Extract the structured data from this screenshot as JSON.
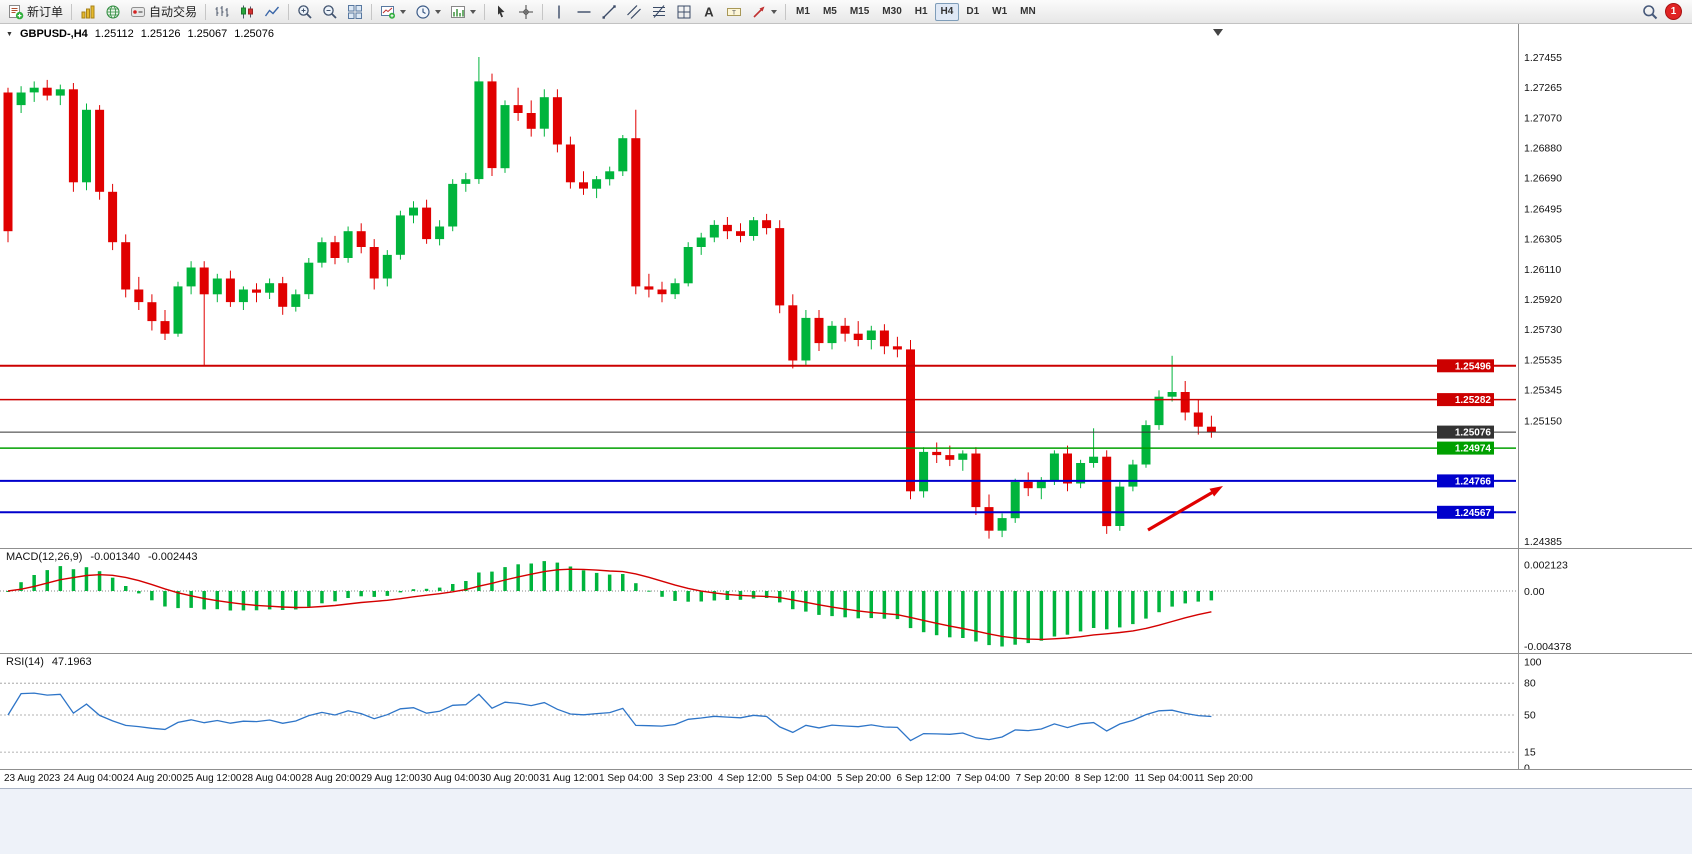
{
  "toolbar": {
    "new_order": "新订单",
    "auto_trading": "自动交易",
    "timeframes": [
      "M1",
      "M5",
      "M15",
      "M30",
      "H1",
      "H4",
      "D1",
      "W1",
      "MN"
    ],
    "active_timeframe": "H4",
    "notification_count": "1"
  },
  "quote": {
    "symbol": "GBPUSD-,H4",
    "open": "1.25112",
    "high": "1.25126",
    "low": "1.25067",
    "close": "1.25076"
  },
  "chart_data": {
    "type": "candlestick",
    "symbol": "GBPUSD-",
    "timeframe": "H4",
    "up_color": "#00b43c",
    "down_color": "#e00000",
    "price_scale_labels": [
      1.27455,
      1.27265,
      1.2707,
      1.2688,
      1.2669,
      1.26495,
      1.26305,
      1.2611,
      1.2592,
      1.2573,
      1.25535,
      1.25345,
      1.2515,
      1.24385
    ],
    "hlines": [
      {
        "price": 1.25496,
        "color": "#cc0000",
        "width": 2
      },
      {
        "price": 1.25282,
        "color": "#cc0000",
        "width": 1.5
      },
      {
        "price": 1.25076,
        "color": "#333333",
        "width": 1
      },
      {
        "price": 1.24974,
        "color": "#00a000",
        "width": 1.5
      },
      {
        "price": 1.24766,
        "color": "#0000cc",
        "width": 2
      },
      {
        "price": 1.24567,
        "color": "#0000cc",
        "width": 2
      }
    ],
    "candles": [
      [
        1.2723,
        1.2726,
        1.2628,
        1.2635
      ],
      [
        1.2715,
        1.2727,
        1.271,
        1.2723
      ],
      [
        1.2723,
        1.273,
        1.2717,
        1.2726
      ],
      [
        1.2726,
        1.2731,
        1.2718,
        1.2721
      ],
      [
        1.2721,
        1.2728,
        1.2715,
        1.2725
      ],
      [
        1.2725,
        1.2729,
        1.266,
        1.2666
      ],
      [
        1.2666,
        1.2716,
        1.2661,
        1.2712
      ],
      [
        1.2712,
        1.2715,
        1.2655,
        1.266
      ],
      [
        1.266,
        1.2665,
        1.2623,
        1.2628
      ],
      [
        1.2628,
        1.2633,
        1.2593,
        1.2598
      ],
      [
        1.2598,
        1.2606,
        1.2585,
        1.259
      ],
      [
        1.259,
        1.2595,
        1.2572,
        1.2578
      ],
      [
        1.2578,
        1.2585,
        1.2566,
        1.257
      ],
      [
        1.257,
        1.2603,
        1.2568,
        1.26
      ],
      [
        1.26,
        1.2616,
        1.2595,
        1.2612
      ],
      [
        1.2612,
        1.2616,
        1.255,
        1.2595
      ],
      [
        1.2595,
        1.2608,
        1.259,
        1.2605
      ],
      [
        1.2605,
        1.261,
        1.2587,
        1.259
      ],
      [
        1.259,
        1.26,
        1.2585,
        1.2598
      ],
      [
        1.2598,
        1.2602,
        1.259,
        1.2596
      ],
      [
        1.2596,
        1.2605,
        1.2592,
        1.2602
      ],
      [
        1.2602,
        1.2606,
        1.2582,
        1.2587
      ],
      [
        1.2587,
        1.2598,
        1.2584,
        1.2595
      ],
      [
        1.2595,
        1.2618,
        1.2592,
        1.2615
      ],
      [
        1.2615,
        1.2631,
        1.2612,
        1.2628
      ],
      [
        1.2628,
        1.2632,
        1.2614,
        1.2618
      ],
      [
        1.2618,
        1.2638,
        1.2615,
        1.2635
      ],
      [
        1.2635,
        1.264,
        1.2621,
        1.2625
      ],
      [
        1.2625,
        1.263,
        1.2598,
        1.2605
      ],
      [
        1.2605,
        1.2623,
        1.26,
        1.262
      ],
      [
        1.262,
        1.2648,
        1.2617,
        1.2645
      ],
      [
        1.2645,
        1.2654,
        1.264,
        1.265
      ],
      [
        1.265,
        1.2655,
        1.2627,
        1.263
      ],
      [
        1.263,
        1.2642,
        1.2626,
        1.2638
      ],
      [
        1.2638,
        1.2668,
        1.2635,
        1.2665
      ],
      [
        1.2665,
        1.2672,
        1.266,
        1.2668
      ],
      [
        1.2668,
        1.27455,
        1.2665,
        1.273
      ],
      [
        1.273,
        1.2735,
        1.267,
        1.2675
      ],
      [
        1.2675,
        1.2718,
        1.2672,
        1.2715
      ],
      [
        1.2715,
        1.2726,
        1.2705,
        1.271
      ],
      [
        1.271,
        1.2718,
        1.2695,
        1.27
      ],
      [
        1.27,
        1.2725,
        1.2695,
        1.272
      ],
      [
        1.272,
        1.2725,
        1.2685,
        1.269
      ],
      [
        1.269,
        1.2695,
        1.2662,
        1.2666
      ],
      [
        1.2666,
        1.2673,
        1.2658,
        1.2662
      ],
      [
        1.2662,
        1.267,
        1.2656,
        1.2668
      ],
      [
        1.2668,
        1.2676,
        1.2664,
        1.2673
      ],
      [
        1.2673,
        1.2696,
        1.267,
        1.2694
      ],
      [
        1.2694,
        1.2712,
        1.2595,
        1.26
      ],
      [
        1.26,
        1.2608,
        1.2593,
        1.2598
      ],
      [
        1.2598,
        1.2603,
        1.259,
        1.2595
      ],
      [
        1.2595,
        1.2605,
        1.2592,
        1.2602
      ],
      [
        1.2602,
        1.2628,
        1.26,
        1.2625
      ],
      [
        1.2625,
        1.2634,
        1.262,
        1.2631
      ],
      [
        1.2631,
        1.2642,
        1.2628,
        1.2639
      ],
      [
        1.2639,
        1.2644,
        1.263,
        1.2635
      ],
      [
        1.2635,
        1.264,
        1.2628,
        1.2632
      ],
      [
        1.2632,
        1.2644,
        1.2629,
        1.2642
      ],
      [
        1.2642,
        1.2646,
        1.2633,
        1.2637
      ],
      [
        1.2637,
        1.2642,
        1.2583,
        1.2588
      ],
      [
        1.2588,
        1.2595,
        1.2548,
        1.2553
      ],
      [
        1.2553,
        1.2585,
        1.255,
        1.258
      ],
      [
        1.258,
        1.2585,
        1.2559,
        1.2564
      ],
      [
        1.2564,
        1.2578,
        1.256,
        1.2575
      ],
      [
        1.2575,
        1.258,
        1.2565,
        1.257
      ],
      [
        1.257,
        1.2578,
        1.2562,
        1.2566
      ],
      [
        1.2566,
        1.2575,
        1.256,
        1.2572
      ],
      [
        1.2572,
        1.2576,
        1.2557,
        1.2562
      ],
      [
        1.2562,
        1.2568,
        1.2555,
        1.256
      ],
      [
        1.256,
        1.2566,
        1.2465,
        1.247
      ],
      [
        1.247,
        1.2498,
        1.2466,
        1.2495
      ],
      [
        1.2495,
        1.2501,
        1.2488,
        1.2493
      ],
      [
        1.2493,
        1.2499,
        1.2486,
        1.249
      ],
      [
        1.249,
        1.2496,
        1.2483,
        1.2494
      ],
      [
        1.2494,
        1.2498,
        1.2455,
        1.246
      ],
      [
        1.246,
        1.2468,
        1.244,
        1.2445
      ],
      [
        1.2445,
        1.2456,
        1.2441,
        1.2453
      ],
      [
        1.2453,
        1.2478,
        1.245,
        1.2476
      ],
      [
        1.2476,
        1.2482,
        1.2467,
        1.2472
      ],
      [
        1.2472,
        1.2479,
        1.2465,
        1.2477
      ],
      [
        1.2477,
        1.2496,
        1.2474,
        1.2494
      ],
      [
        1.2494,
        1.2499,
        1.247,
        1.2475
      ],
      [
        1.2475,
        1.249,
        1.2472,
        1.2488
      ],
      [
        1.2488,
        1.251,
        1.2485,
        1.2492
      ],
      [
        1.2492,
        1.2496,
        1.2443,
        1.2448
      ],
      [
        1.2448,
        1.2476,
        1.2445,
        1.2473
      ],
      [
        1.2473,
        1.249,
        1.247,
        1.2487
      ],
      [
        1.2487,
        1.2515,
        1.2485,
        1.2512
      ],
      [
        1.2512,
        1.2534,
        1.2509,
        1.253
      ],
      [
        1.253,
        1.2556,
        1.2527,
        1.2533
      ],
      [
        1.2533,
        1.254,
        1.2515,
        1.252
      ],
      [
        1.252,
        1.2528,
        1.2506,
        1.2511
      ],
      [
        1.2511,
        1.2518,
        1.2504,
        1.25076
      ]
    ],
    "time_labels": [
      "23 Aug 2023",
      "24 Aug 04:00",
      "24 Aug 20:00",
      "25 Aug 12:00",
      "28 Aug 04:00",
      "28 Aug 20:00",
      "29 Aug 12:00",
      "30 Aug 04:00",
      "30 Aug 20:00",
      "31 Aug 12:00",
      "1 Sep 04:00",
      "3 Sep 23:00",
      "4 Sep 12:00",
      "5 Sep 04:00",
      "5 Sep 20:00",
      "6 Sep 12:00",
      "7 Sep 04:00",
      "7 Sep 20:00",
      "8 Sep 12:00",
      "11 Sep 04:00",
      "11 Sep 20:00"
    ],
    "macd": {
      "label": "MACD(12,26,9)",
      "value_main": "-0.001340",
      "value_signal": "-0.002443",
      "params": [
        12,
        26,
        9
      ],
      "hist_color": "#00b43c",
      "signal_color": "#d40000",
      "scale": [
        {
          "text": "0.002123",
          "value": 0.002123
        },
        {
          "text": "0.00",
          "value": 0
        },
        {
          "text": "-0.004378",
          "value": -0.004378
        }
      ]
    },
    "rsi": {
      "label": "RSI(14)",
      "value": "47.1963",
      "period": 14,
      "line_color": "#2e75c8",
      "levels": [
        80,
        50,
        15
      ],
      "scale": [
        {
          "text": "100",
          "value": 100
        },
        {
          "text": "80",
          "value": 80
        },
        {
          "text": "50",
          "value": 50
        },
        {
          "text": "15",
          "value": 15
        },
        {
          "text": "0",
          "value": 0
        }
      ]
    },
    "annotation_arrow": {
      "color": "#e00000"
    }
  }
}
